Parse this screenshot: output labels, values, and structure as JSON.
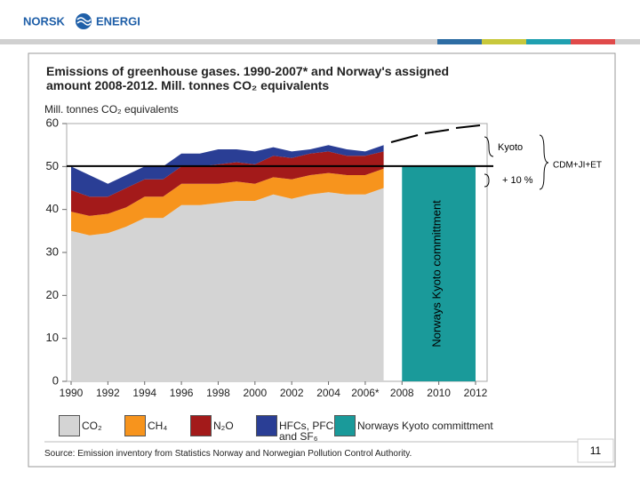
{
  "header": {
    "logo": [
      "NORSK",
      "ENERGI"
    ]
  },
  "chart_data": {
    "type": "stacked_area",
    "title": "Emissions of greenhouse gases. 1990-2007* and Norway's assigned amount 2008-2012. Mill. tonnes CO₂ equivalents",
    "y_label": "Mill. tonnes CO₂ equivalents",
    "x": [
      1990,
      1991,
      1992,
      1993,
      1994,
      1995,
      1996,
      1997,
      1998,
      1999,
      2000,
      2001,
      2002,
      2003,
      2004,
      2005,
      2006,
      2007
    ],
    "series": [
      {
        "name": "CO₂",
        "color": "#d4d4d4",
        "values": [
          35,
          34,
          34.5,
          36,
          38,
          38,
          41,
          41,
          41.5,
          42,
          42,
          43.5,
          42.5,
          43.5,
          44,
          43.5,
          43.5,
          45
        ]
      },
      {
        "name": "CH₄",
        "color": "#f7941d",
        "values": [
          4.5,
          4.5,
          4.5,
          4.5,
          5,
          5,
          5,
          5,
          4.5,
          4.5,
          4,
          4,
          4.5,
          4.5,
          4.5,
          4.5,
          4.5,
          4.5
        ]
      },
      {
        "name": "N₂O",
        "color": "#a31a1a",
        "values": [
          5,
          4.5,
          4,
          4.5,
          4,
          4,
          4,
          4,
          4.5,
          4.5,
          4.5,
          5,
          5,
          5,
          5,
          4.5,
          4.5,
          4
        ]
      },
      {
        "name": "HFCs, PFCs and SF₆",
        "color": "#2a3e95",
        "values": [
          5.5,
          5,
          3,
          3,
          3,
          3,
          3,
          3,
          3.5,
          3,
          3,
          2,
          1.5,
          1,
          1.5,
          1.5,
          1,
          1.5
        ]
      }
    ],
    "commitment": {
      "name": "Norways Kyoto committment",
      "color": "#1a9a9a",
      "value": 50.1,
      "x": [
        2008,
        2012
      ]
    },
    "xlim": [
      1990,
      2012
    ],
    "xticks": [
      1990,
      1992,
      1994,
      1996,
      1998,
      2000,
      2002,
      2004,
      {
        "value": 2006,
        "label": "2006*"
      },
      2008,
      2010,
      2012
    ],
    "ylim": [
      0,
      60
    ],
    "yticks": [
      0,
      10,
      20,
      30,
      40,
      50,
      60
    ],
    "annotations": [
      "Kyoto",
      "+ 10 %",
      "CDM+JI+ET"
    ]
  },
  "source": "Source: Emission inventory from Statistics Norway and Norwegian Pollution Control Authority.",
  "page_number": "11"
}
